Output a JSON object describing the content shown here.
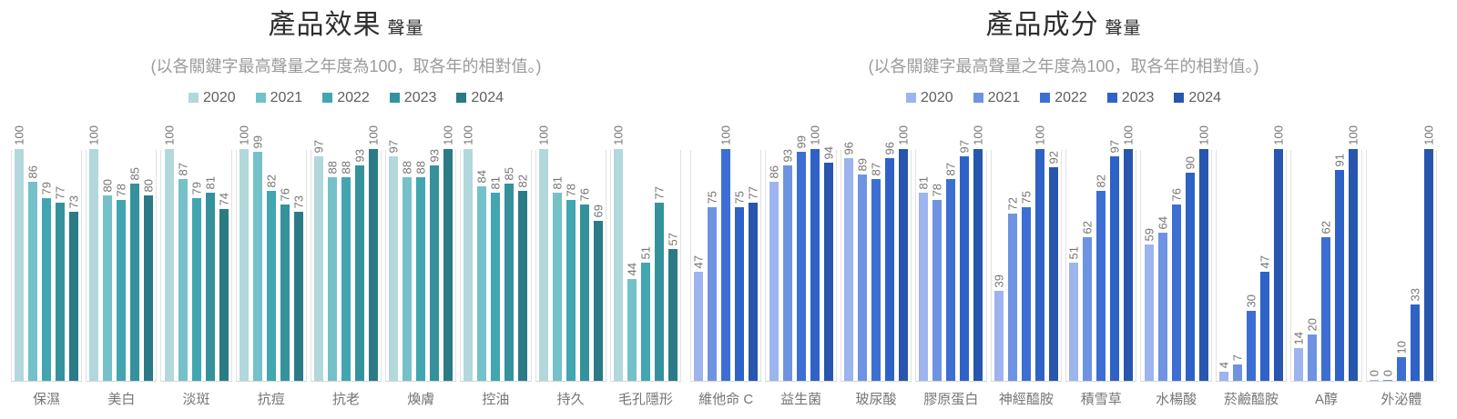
{
  "chart_data": [
    {
      "type": "bar",
      "title": "產品效果",
      "title_suffix": "聲量",
      "subtitle": "(以各關鍵字最高聲量之年度為100，取各年的相對值。)",
      "legend_position": "top",
      "grid": false,
      "value_labels_rotated": true,
      "ylim": [
        0,
        100
      ],
      "xlabel": "",
      "ylabel": "",
      "categories": [
        "保濕",
        "美白",
        "淡斑",
        "抗痘",
        "抗老",
        "煥膚",
        "控油",
        "持久",
        "毛孔隱形"
      ],
      "series": [
        {
          "name": "2020",
          "color": "#b2d8dc",
          "values": [
            100,
            100,
            100,
            100,
            97,
            97,
            100,
            100,
            100
          ]
        },
        {
          "name": "2021",
          "color": "#74c1c9",
          "values": [
            86,
            80,
            87,
            99,
            88,
            88,
            84,
            81,
            44
          ]
        },
        {
          "name": "2022",
          "color": "#42a6b1",
          "values": [
            79,
            78,
            79,
            82,
            88,
            88,
            81,
            78,
            51
          ]
        },
        {
          "name": "2023",
          "color": "#35929d",
          "values": [
            77,
            85,
            81,
            76,
            93,
            93,
            85,
            76,
            77
          ]
        },
        {
          "name": "2024",
          "color": "#2a7b86",
          "values": [
            73,
            80,
            74,
            73,
            100,
            100,
            82,
            69,
            57
          ]
        }
      ]
    },
    {
      "type": "bar",
      "title": "產品成分",
      "title_suffix": "聲量",
      "subtitle": "(以各關鍵字最高聲量之年度為100，取各年的相對值。)",
      "legend_position": "top",
      "grid": false,
      "value_labels_rotated": true,
      "ylim": [
        0,
        100
      ],
      "xlabel": "",
      "ylabel": "",
      "categories": [
        "維他命 C",
        "益生菌",
        "玻尿酸",
        "膠原蛋白",
        "神經醯胺",
        "積雪草",
        "水楊酸",
        "菸鹼醯胺",
        "A醇",
        "外泌體"
      ],
      "series": [
        {
          "name": "2020",
          "color": "#9db4ee",
          "values": [
            47,
            86,
            96,
            81,
            39,
            51,
            59,
            4,
            14,
            0
          ]
        },
        {
          "name": "2021",
          "color": "#6f93e3",
          "values": [
            75,
            93,
            89,
            78,
            72,
            62,
            64,
            7,
            20,
            0
          ]
        },
        {
          "name": "2022",
          "color": "#3d6ed3",
          "values": [
            100,
            99,
            87,
            87,
            75,
            82,
            76,
            30,
            62,
            10
          ]
        },
        {
          "name": "2023",
          "color": "#2f62c6",
          "values": [
            75,
            100,
            96,
            97,
            100,
            97,
            90,
            47,
            91,
            33
          ]
        },
        {
          "name": "2024",
          "color": "#2856ae",
          "values": [
            77,
            94,
            100,
            100,
            92,
            100,
            100,
            100,
            100,
            100
          ]
        }
      ]
    }
  ]
}
